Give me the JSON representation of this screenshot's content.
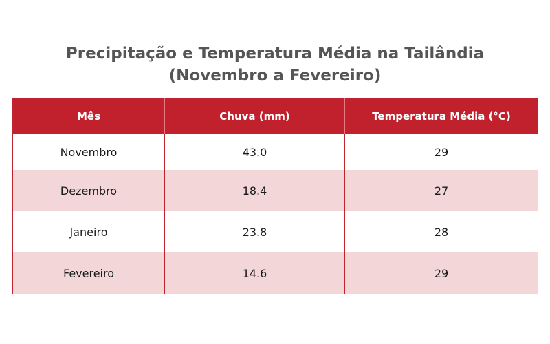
{
  "title_lines": [
    "Precipitação e Temperatura Média na Tailândia",
    "(Novembro a Fevereiro)"
  ],
  "colors": {
    "header_bg": "#c0212c",
    "header_text": "#ffffff",
    "row_alt_bg": "#f3d6d8",
    "row_bg": "#ffffff",
    "title_text": "#555555"
  },
  "chart_data": {
    "type": "table",
    "title": "Precipitação e Temperatura Média na Tailândia (Novembro a Fevereiro)",
    "columns": [
      "Mês",
      "Chuva (mm)",
      "Temperatura Média (°C)"
    ],
    "rows": [
      [
        "Novembro",
        "43.0",
        "29"
      ],
      [
        "Dezembro",
        "18.4",
        "27"
      ],
      [
        "Janeiro",
        "23.8",
        "28"
      ],
      [
        "Fevereiro",
        "14.6",
        "29"
      ]
    ]
  }
}
